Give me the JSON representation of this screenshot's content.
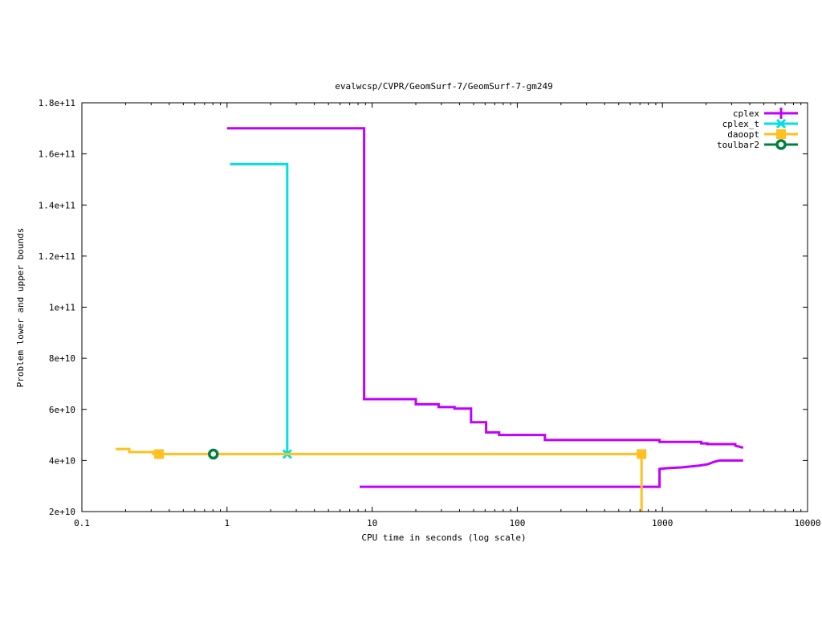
{
  "chart_data": {
    "type": "line",
    "title": "evalwcsp/CVPR/GeomSurf-7/GeomSurf-7-gm249",
    "xlabel": "CPU time in seconds (log scale)",
    "ylabel": "Problem lower and upper bounds",
    "xscale": "log",
    "xlim": [
      0.1,
      10000
    ],
    "ylim": [
      20000000000.0,
      180000000000.0
    ],
    "xticks": [
      0.1,
      1,
      10,
      100,
      1000,
      10000
    ],
    "xtick_labels": [
      "0.1",
      "1",
      "10",
      "100",
      "1000",
      "10000"
    ],
    "yticks": [
      20000000000.0,
      40000000000.0,
      60000000000.0,
      80000000000.0,
      100000000000.0,
      120000000000.0,
      140000000000.0,
      160000000000.0,
      180000000000.0
    ],
    "ytick_labels": [
      "2e+10",
      "4e+10",
      "6e+10",
      "8e+10",
      "1e+11",
      "1.2e+11",
      "1.4e+11",
      "1.6e+11",
      "1.8e+11"
    ],
    "grid": false,
    "legend_position": "top-right",
    "series": [
      {
        "name": "cplex",
        "color": "#c000ff",
        "marker": "plus",
        "segments": [
          [
            [
              1,
              170000000000.0
            ],
            [
              8.8,
              170000000000.0
            ],
            [
              8.8,
              64000000000.0
            ],
            [
              20,
              64000000000.0
            ],
            [
              20,
              62000000000.0
            ],
            [
              28.7,
              62000000000.0
            ],
            [
              28.7,
              60900000000.0
            ],
            [
              37,
              60900000000.0
            ],
            [
              37,
              60300000000.0
            ],
            [
              48,
              60300000000.0
            ],
            [
              48,
              55000000000.0
            ],
            [
              61,
              55000000000.0
            ],
            [
              61,
              51000000000.0
            ],
            [
              75,
              51000000000.0
            ],
            [
              75,
              50000000000.0
            ],
            [
              155,
              50000000000.0
            ],
            [
              155,
              48000000000.0
            ],
            [
              955,
              48000000000.0
            ],
            [
              955,
              47300000000.0
            ],
            [
              1850,
              47300000000.0
            ],
            [
              1850,
              46700000000.0
            ],
            [
              2040,
              46700000000.0
            ],
            [
              2040,
              46400000000.0
            ],
            [
              3180,
              46400000000.0
            ],
            [
              3180,
              45800000000.0
            ],
            [
              3600,
              45000000000.0
            ]
          ],
          [
            [
              8.2,
              29700000000.0
            ],
            [
              955,
              29700000000.0
            ],
            [
              955,
              36700000000.0
            ],
            [
              1090,
              37000000000.0
            ],
            [
              1350,
              37300000000.0
            ],
            [
              1790,
              38000000000.0
            ],
            [
              2050,
              38500000000.0
            ],
            [
              2270,
              39500000000.0
            ],
            [
              2480,
              40000000000.0
            ],
            [
              3600,
              40000000000.0
            ]
          ]
        ],
        "markers": []
      },
      {
        "name": "cplex_t",
        "color": "#00e0e0",
        "marker": "cross",
        "segments": [
          [
            [
              1.05,
              156000000000.0
            ],
            [
              2.6,
              156000000000.0
            ],
            [
              2.6,
              42500000000.0
            ]
          ]
        ],
        "markers": [
          [
            2.6,
            42500000000.0
          ]
        ]
      },
      {
        "name": "daoopt",
        "color": "#ffc020",
        "marker": "square",
        "segments": [
          [
            [
              0.171,
              44500000000.0
            ],
            [
              0.212,
              44500000000.0
            ],
            [
              0.212,
              43300000000.0
            ],
            [
              0.31,
              43300000000.0
            ],
            [
              0.31,
              42500000000.0
            ],
            [
              718,
              42500000000.0
            ],
            [
              718,
              10000000000.0
            ]
          ]
        ],
        "markers": [
          [
            0.34,
            42500000000.0
          ],
          [
            718,
            42500000000.0
          ]
        ]
      },
      {
        "name": "toulbar2",
        "color": "#008040",
        "marker": "circle",
        "segments": [],
        "markers": [
          [
            0.805,
            42500000000.0
          ]
        ]
      }
    ]
  }
}
